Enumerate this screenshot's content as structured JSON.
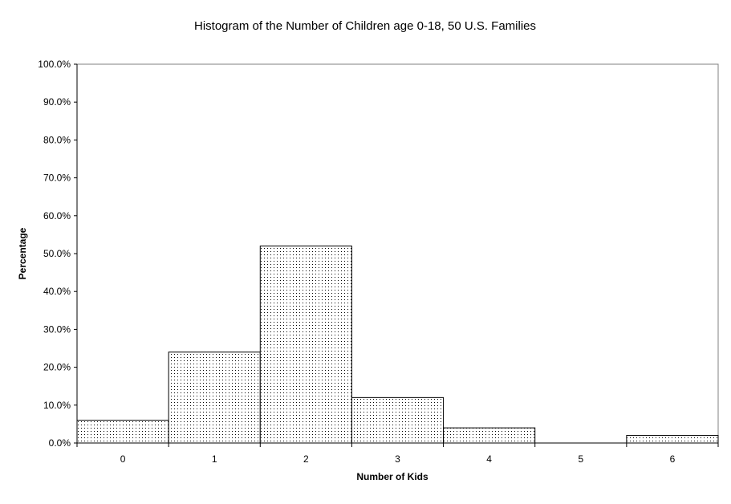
{
  "chart_data": {
    "type": "bar",
    "title": "Histogram of the Number of Children age 0-18, 50 U.S. Families",
    "xlabel": "Number of Kids",
    "ylabel": "Percentage",
    "categories": [
      "0",
      "1",
      "2",
      "3",
      "4",
      "5",
      "6"
    ],
    "values": [
      6.0,
      24.0,
      52.0,
      12.0,
      4.0,
      0.0,
      2.0
    ],
    "y_unit": "percent",
    "ylim": [
      0,
      100
    ],
    "y_ticks": [
      "0.0%",
      "10.0%",
      "20.0%",
      "30.0%",
      "40.0%",
      "50.0%",
      "60.0%",
      "70.0%",
      "80.0%",
      "90.0%",
      "100.0%"
    ],
    "grid": false,
    "legend": "none",
    "bar_fill": "dotted",
    "colors": {
      "bar_fill": "#ffffff",
      "bar_dots": "#000000",
      "bar_stroke": "#000000",
      "plot_border": "#808080"
    }
  }
}
